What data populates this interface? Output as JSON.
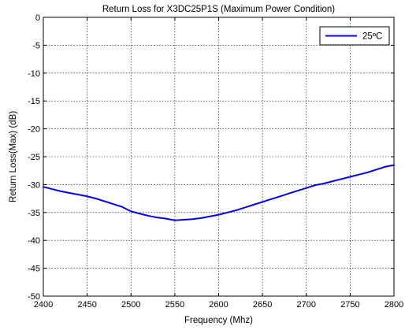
{
  "chart_data": {
    "type": "line",
    "title": "Return Loss for X3DC25P1S (Maximum Power Condition)",
    "xlabel": "Frequency (Mhz)",
    "ylabel": "Return Loss(Max) (dB)",
    "xlim": [
      2400,
      2800
    ],
    "ylim": [
      -50,
      0
    ],
    "xticks": [
      2400,
      2450,
      2500,
      2550,
      2600,
      2650,
      2700,
      2750,
      2800
    ],
    "yticks": [
      0,
      -5,
      -10,
      -15,
      -20,
      -25,
      -30,
      -35,
      -40,
      -45,
      -50
    ],
    "grid": true,
    "legend_position": "top-right",
    "series": [
      {
        "name": "25ºC",
        "color": "#0000ff",
        "x": [
          2400,
          2410,
          2420,
          2430,
          2440,
          2450,
          2460,
          2470,
          2480,
          2490,
          2500,
          2510,
          2520,
          2530,
          2540,
          2550,
          2560,
          2570,
          2580,
          2590,
          2600,
          2610,
          2620,
          2630,
          2640,
          2650,
          2660,
          2670,
          2680,
          2690,
          2700,
          2710,
          2720,
          2730,
          2740,
          2750,
          2760,
          2770,
          2780,
          2790,
          2800
        ],
        "y": [
          -30.4,
          -30.8,
          -31.2,
          -31.5,
          -31.8,
          -32.1,
          -32.5,
          -33.0,
          -33.5,
          -34.0,
          -34.8,
          -35.2,
          -35.6,
          -35.9,
          -36.1,
          -36.4,
          -36.3,
          -36.2,
          -36.0,
          -35.7,
          -35.4,
          -35.0,
          -34.6,
          -34.1,
          -33.6,
          -33.1,
          -32.6,
          -32.1,
          -31.6,
          -31.1,
          -30.6,
          -30.1,
          -29.8,
          -29.4,
          -29.0,
          -28.6,
          -28.2,
          -27.8,
          -27.3,
          -26.8,
          -26.5
        ]
      }
    ]
  }
}
